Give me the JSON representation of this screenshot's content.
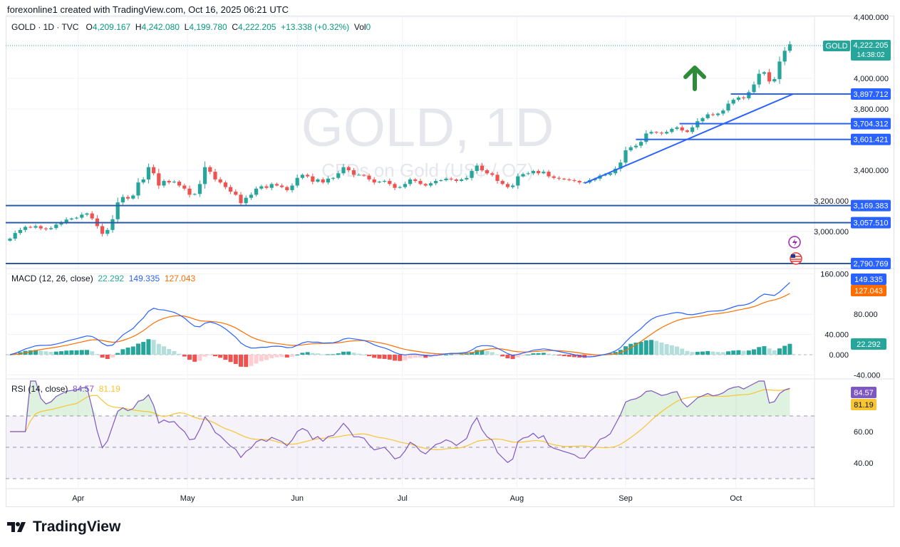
{
  "credit": "forexonline1 created with TradingView.com, Oct 16, 2025 06:21 UTC",
  "legend": {
    "symbol": "GOLD · 1D · TVC",
    "o_label": "O",
    "o": "4,209.167",
    "h_label": "H",
    "h": "4,242.080",
    "l_label": "L",
    "l": "4,199.780",
    "c_label": "C",
    "c": "4,222.205",
    "change": "+13.338 (+0.32%)",
    "vol_label": "Vol",
    "vol": "0"
  },
  "watermark": {
    "title": "GOLD, 1D",
    "subtitle": "CFDs on Gold (US$ / OZ)"
  },
  "price_tag": {
    "symbol": "GOLD",
    "price": "4,222.205",
    "countdown": "14:38:02"
  },
  "macd": {
    "title": "MACD (12, 26, close)",
    "hist": "22.292",
    "macd": "149.335",
    "signal": "127.043"
  },
  "rsi": {
    "title": "RSI (14, close)",
    "rsi": "84.57",
    "ma": "81.19"
  },
  "logo": "TradingView",
  "colors": {
    "up": "#26a69a",
    "down": "#ef5350",
    "level": "#2962ff",
    "macd": "#2962ff",
    "signal": "#ff6d00",
    "rsi": "#7e57c2",
    "rsi_ma": "#f7c531",
    "arrow": "#2e8b3a"
  },
  "chart_data": [
    {
      "type": "candlestick",
      "title": "GOLD, 1D",
      "x_ticks": [
        "Apr",
        "May",
        "Jun",
        "Jul",
        "Aug",
        "Sep",
        "Oct"
      ],
      "y_ticks": [
        "4,400.000",
        "4,000.000",
        "3,800.000",
        "3,400.000",
        "3,200.000",
        "3,000.000"
      ],
      "ylim": [
        2770,
        4400
      ],
      "grid": true,
      "close": [
        2953,
        2990,
        3010,
        3030,
        3025,
        3035,
        3020,
        3015,
        3022,
        3045,
        3060,
        3078,
        3085,
        3090,
        3110,
        3118,
        3085,
        3035,
        2985,
        3010,
        3080,
        3190,
        3225,
        3215,
        3235,
        3320,
        3340,
        3420,
        3380,
        3300,
        3330,
        3320,
        3325,
        3300,
        3280,
        3240,
        3245,
        3310,
        3420,
        3390,
        3340,
        3320,
        3290,
        3260,
        3240,
        3185,
        3220,
        3240,
        3280,
        3295,
        3285,
        3310,
        3300,
        3290,
        3270,
        3300,
        3350,
        3370,
        3360,
        3325,
        3340,
        3320,
        3345,
        3350,
        3380,
        3420,
        3400,
        3370,
        3370,
        3365,
        3340,
        3320,
        3325,
        3330,
        3310,
        3285,
        3290,
        3310,
        3340,
        3330,
        3310,
        3300,
        3315,
        3330,
        3335,
        3345,
        3340,
        3330,
        3340,
        3350,
        3395,
        3430,
        3400,
        3380,
        3370,
        3330,
        3310,
        3290,
        3300,
        3360,
        3375,
        3380,
        3395,
        3380,
        3390,
        3360,
        3350,
        3345,
        3340,
        3335,
        3330,
        3320,
        3320,
        3335,
        3345,
        3365,
        3370,
        3380,
        3410,
        3450,
        3530,
        3550,
        3560,
        3585,
        3640,
        3650,
        3645,
        3640,
        3650,
        3670,
        3680,
        3660,
        3650,
        3680,
        3720,
        3740,
        3765,
        3760,
        3770,
        3790,
        3835,
        3860,
        3875,
        3870,
        3910,
        3960,
        4030,
        4040,
        3980,
        3995,
        4110,
        4180,
        4222
      ],
      "levels": [
        {
          "price": 3897.712,
          "label": "3,897.712"
        },
        {
          "price": 3704.312,
          "label": "3,704.312"
        },
        {
          "price": 3601.421,
          "label": "3,601.421"
        },
        {
          "price": 3169.383,
          "label": "3,169.383"
        },
        {
          "price": 3057.51,
          "label": "3,057.510"
        },
        {
          "price": 2790.769,
          "label": "2,790.769"
        }
      ],
      "trendline": {
        "from_price": 3315,
        "to_price": 3897.712
      }
    },
    {
      "type": "line",
      "title": "MACD (12, 26, close)",
      "y_ticks": [
        "160.000",
        "80.000",
        "40.000",
        "0.000",
        "-40.000"
      ],
      "ylim": [
        -45,
        165
      ]
    },
    {
      "type": "line",
      "title": "RSI (14, close)",
      "y_ticks": [
        "60.00",
        "40.00"
      ],
      "bands": [
        70,
        50,
        30
      ],
      "ylim": [
        25,
        95
      ]
    }
  ]
}
